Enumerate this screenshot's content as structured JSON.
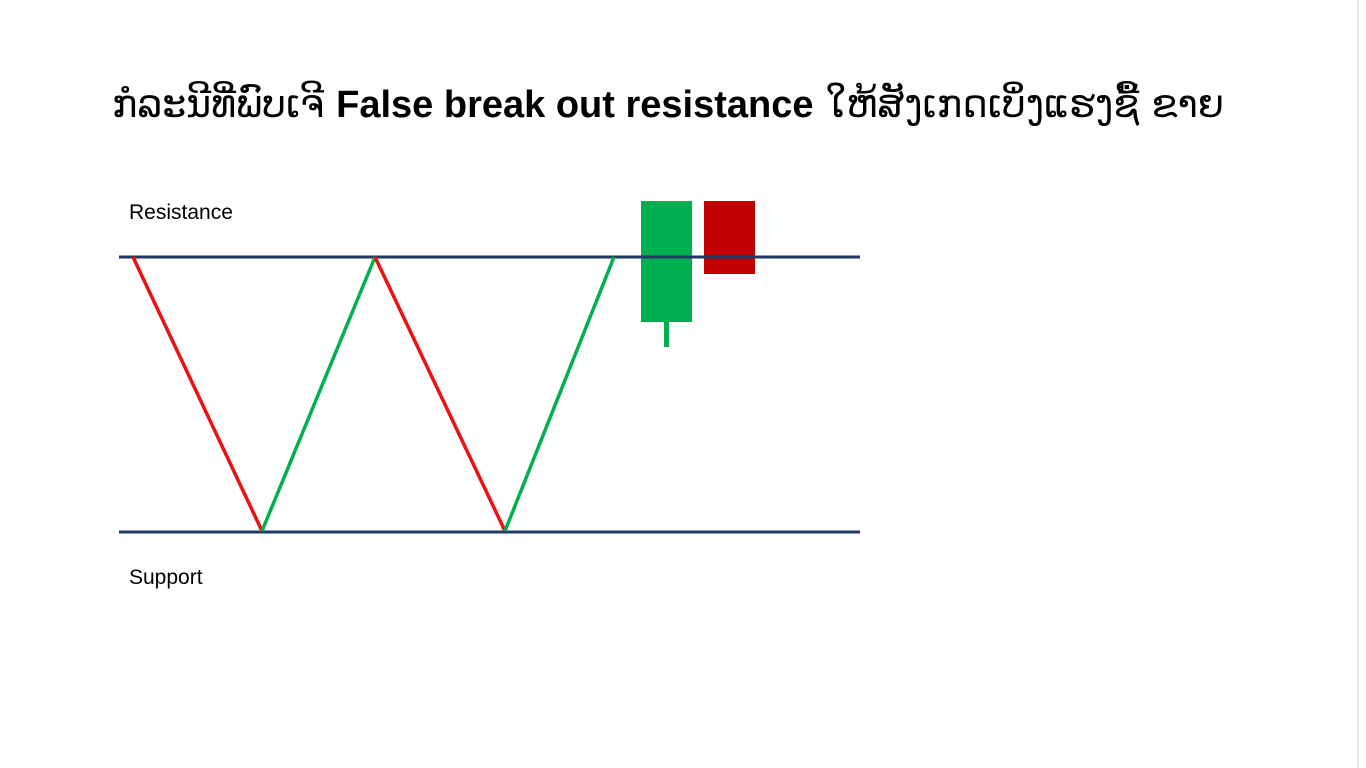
{
  "title": {
    "prefix": "ກໍລະນີທີ່ພົບເຈີ ",
    "bold": "False break out resistance",
    "suffix": " ໃຫ້ສັງເກດເບິ່ງແຮງຊື້ ຂາຍ"
  },
  "labels": {
    "resistance": "Resistance",
    "support": "Support"
  },
  "colors": {
    "level_line": "#1f3864",
    "down_leg": "#ee1111",
    "up_leg": "#00b050",
    "bull_candle": "#00b050",
    "bear_candle": "#c00000"
  }
}
